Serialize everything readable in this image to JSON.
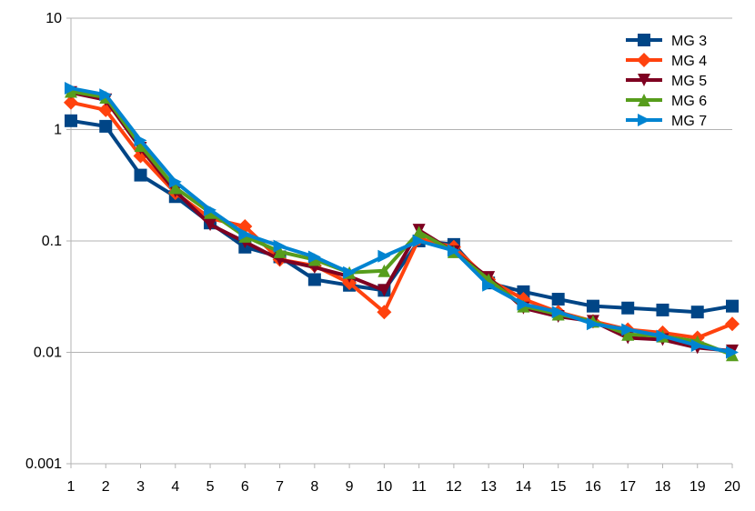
{
  "chart_data": {
    "type": "line",
    "title": "",
    "xlabel": "",
    "ylabel": "",
    "y_scale": "log",
    "ylim": [
      0.001,
      10
    ],
    "y_ticks": [
      0.001,
      0.01,
      0.1,
      1,
      10
    ],
    "y_tick_labels": [
      "0.001",
      "0.01",
      "0.1",
      "1",
      "10"
    ],
    "x": [
      1,
      2,
      3,
      4,
      5,
      6,
      7,
      8,
      9,
      10,
      11,
      12,
      13,
      14,
      15,
      16,
      17,
      18,
      19,
      20
    ],
    "x_tick_labels": [
      "1",
      "2",
      "3",
      "4",
      "5",
      "6",
      "7",
      "8",
      "9",
      "10",
      "11",
      "12",
      "13",
      "14",
      "15",
      "16",
      "17",
      "18",
      "19",
      "20"
    ],
    "grid": "horizontal",
    "legend_position": "top-right",
    "series": [
      {
        "name": "MG 3",
        "color": "#004586",
        "marker": "square",
        "values": [
          1.2,
          1.07,
          0.39,
          0.25,
          0.145,
          0.088,
          0.072,
          0.045,
          0.04,
          0.036,
          0.1,
          0.093,
          0.042,
          0.035,
          0.03,
          0.026,
          0.025,
          0.024,
          0.023,
          0.026
        ]
      },
      {
        "name": "MG 4",
        "color": "#ff420e",
        "marker": "diamond",
        "values": [
          1.75,
          1.5,
          0.58,
          0.27,
          0.16,
          0.135,
          0.068,
          0.06,
          0.042,
          0.023,
          0.105,
          0.088,
          0.045,
          0.03,
          0.023,
          0.019,
          0.016,
          0.015,
          0.0135,
          0.018
        ]
      },
      {
        "name": "MG 5",
        "color": "#7e0021",
        "marker": "triangle-down",
        "values": [
          2.15,
          1.85,
          0.68,
          0.28,
          0.14,
          0.098,
          0.068,
          0.058,
          0.048,
          0.036,
          0.125,
          0.08,
          0.047,
          0.025,
          0.021,
          0.019,
          0.0135,
          0.013,
          0.011,
          0.0103
        ]
      },
      {
        "name": "MG 6",
        "color": "#579d1c",
        "marker": "triangle-up",
        "values": [
          2.2,
          1.95,
          0.72,
          0.3,
          0.18,
          0.11,
          0.08,
          0.068,
          0.052,
          0.054,
          0.12,
          0.08,
          0.045,
          0.026,
          0.022,
          0.019,
          0.0145,
          0.014,
          0.0125,
          0.0095
        ]
      },
      {
        "name": "MG 7",
        "color": "#0084d1",
        "marker": "triangle-right",
        "values": [
          2.35,
          2.05,
          0.8,
          0.34,
          0.19,
          0.115,
          0.09,
          0.072,
          0.052,
          0.073,
          0.1,
          0.082,
          0.04,
          0.027,
          0.023,
          0.018,
          0.016,
          0.014,
          0.0115,
          0.01
        ]
      }
    ]
  }
}
